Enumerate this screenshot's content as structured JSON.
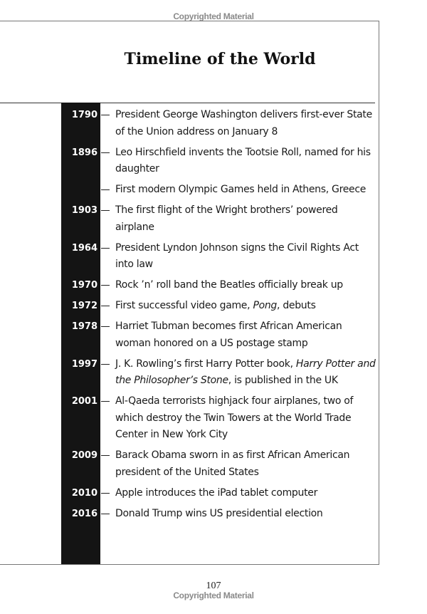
{
  "watermark_top": "Copyrighted Material",
  "watermark_bottom": "Copyrighted Material",
  "title": "Timeline of the World",
  "page_number": "107",
  "entries": [
    {
      "year": "1790",
      "segments": [
        {
          "t": "President George Washington delivers first-ever State of the Union address on January 8"
        }
      ]
    },
    {
      "year": "1896",
      "segments": [
        {
          "t": "Leo Hirschfield invents the Tootsie Roll, named for his daughter"
        }
      ]
    },
    {
      "year": "",
      "segments": [
        {
          "t": "First modern Olympic Games held in Athens, Greece"
        }
      ]
    },
    {
      "year": "1903",
      "segments": [
        {
          "t": "The first flight of the Wright brothers’ powered airplane"
        }
      ]
    },
    {
      "year": "1964",
      "segments": [
        {
          "t": "President Lyndon Johnson signs the Civil Rights Act into law"
        }
      ]
    },
    {
      "year": "1970",
      "segments": [
        {
          "t": "Rock ’n’ roll band the Beatles officially break up"
        }
      ]
    },
    {
      "year": "1972",
      "segments": [
        {
          "t": "First successful video game, "
        },
        {
          "t": "Pong",
          "i": true
        },
        {
          "t": ", debuts"
        }
      ]
    },
    {
      "year": "1978",
      "segments": [
        {
          "t": "Harriet Tubman becomes first African American woman honored on a US postage stamp"
        }
      ]
    },
    {
      "year": "1997",
      "segments": [
        {
          "t": "J. K. Rowling’s first Harry Potter book, "
        },
        {
          "t": "Harry Potter and the Philosopher’s Stone",
          "i": true
        },
        {
          "t": ", is published in the UK"
        }
      ]
    },
    {
      "year": "2001",
      "segments": [
        {
          "t": "Al-Qaeda terrorists highjack four airplanes, two of which destroy the Twin Towers at the World Trade Center in New York City"
        }
      ]
    },
    {
      "year": "2009",
      "segments": [
        {
          "t": "Barack Obama sworn in as first African American president of the United States"
        }
      ]
    },
    {
      "year": "2010",
      "segments": [
        {
          "t": "Apple introduces the iPad tablet computer"
        }
      ]
    },
    {
      "year": "2016",
      "segments": [
        {
          "t": "Donald Trump wins US presidential election"
        }
      ]
    }
  ]
}
